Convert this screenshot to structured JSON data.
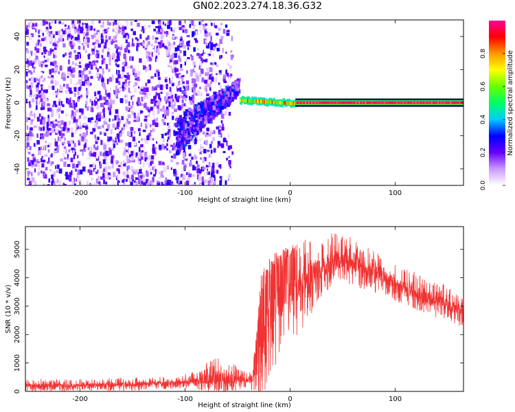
{
  "title": "GN02.2023.274.18.36.G32",
  "chart_data": [
    {
      "type": "heatmap",
      "xlabel": "Height of straight line (km)",
      "ylabel": "Frequency (Hz)",
      "xlim": [
        -252,
        165
      ],
      "ylim": [
        -50,
        50
      ],
      "xticks": [
        -200,
        -100,
        0,
        100
      ],
      "yticks": [
        -40,
        -20,
        0,
        20,
        40
      ],
      "colorbar": {
        "label": "Normalized spectral amplitude",
        "range": [
          0.0,
          1.0
        ],
        "ticks": [
          0.0,
          0.2,
          0.4,
          0.6,
          0.8
        ],
        "colors": [
          "#ffffff",
          "#cc99ff",
          "#6600ff",
          "#0000ff",
          "#00ccff",
          "#00ff66",
          "#66ff00",
          "#ffff00",
          "#ff9900",
          "#ff0000",
          "#ff0099"
        ]
      },
      "regions": [
        {
          "x": [
            -252,
            -55
          ],
          "y_range": [
            -50,
            50
          ],
          "amplitude_range": [
            0.0,
            0.12
          ],
          "pattern": "broadband noise"
        },
        {
          "x": [
            -110,
            -50
          ],
          "y_range": [
            -30,
            5
          ],
          "amplitude_range": [
            0.1,
            0.35
          ],
          "pattern": "rising tone"
        },
        {
          "x": [
            -48,
            5
          ],
          "y_range": [
            -1,
            3
          ],
          "amplitude_range": [
            0.5,
            0.95
          ],
          "pattern": "narrow line"
        },
        {
          "x": [
            5,
            165
          ],
          "y": 0,
          "amplitude_range": [
            0.85,
            1.0
          ],
          "pattern": "constant line"
        }
      ]
    },
    {
      "type": "line",
      "xlabel": "Height of straight line (km)",
      "ylabel": "SNR (10 * v/v)",
      "xlim": [
        -252,
        165
      ],
      "ylim": [
        0,
        5800
      ],
      "xticks": [
        -200,
        -100,
        0,
        100
      ],
      "yticks": [
        0,
        1000,
        2000,
        3000,
        4000,
        5000
      ],
      "series": [
        {
          "color": "#f03232",
          "envelope": {
            "x": [
              -252,
              -200,
              -150,
              -110,
              -90,
              -70,
              -50,
              -40,
              -33,
              -28,
              -20,
              -10,
              0,
              10,
              20,
              30,
              40,
              50,
              60,
              80,
              100,
              120,
              140,
              165
            ],
            "mean": [
              200,
              210,
              250,
              300,
              380,
              480,
              430,
              380,
              600,
              1500,
              2500,
              3000,
              3300,
              3600,
              4000,
              4400,
              4600,
              4700,
              4500,
              4200,
              3800,
              3500,
              3200,
              2800
            ],
            "max": [
              450,
              420,
              500,
              520,
              700,
              1300,
              900,
              700,
              1600,
              4100,
              4700,
              5000,
              5100,
              5300,
              5500,
              5600,
              5700,
              5600,
              5400,
              5000,
              4500,
              4200,
              3900,
              3400
            ]
          }
        }
      ]
    }
  ]
}
